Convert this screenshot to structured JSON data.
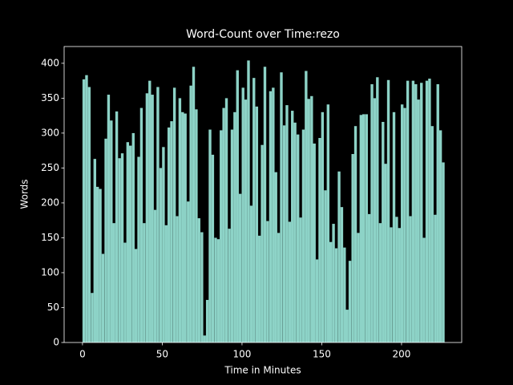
{
  "chart_data": {
    "type": "bar",
    "title": "Word-Count over Time:rezo",
    "xlabel": "Time in Minutes",
    "ylabel": "Words",
    "color": "#8dd3c7",
    "x": [
      0,
      1.7,
      3.4,
      5.2,
      6.9,
      8.6,
      10.3,
      12.0,
      13.8,
      15.5,
      17.2,
      18.9,
      20.6,
      22.4,
      24.1,
      25.8,
      27.5,
      29.2,
      31.0,
      32.7,
      34.4,
      36.1,
      37.8,
      39.6,
      41.3,
      43.0,
      44.7,
      46.4,
      48.2,
      49.9,
      51.6,
      53.3,
      55.0,
      56.8,
      58.5,
      60.2,
      61.9,
      63.6,
      65.4,
      67.1,
      68.8,
      70.5,
      72.2,
      74.0,
      75.7,
      77.4,
      79.1,
      80.8,
      82.6,
      84.3,
      86.0,
      87.7,
      89.4,
      91.2,
      92.9,
      94.6,
      96.3,
      98.0,
      99.8,
      101.5,
      103.2,
      104.9,
      106.6,
      108.4,
      110.1,
      111.8,
      113.5,
      115.2,
      117.0,
      118.7,
      120.4,
      122.1,
      123.8,
      125.6,
      127.3,
      129.0,
      130.7,
      132.4,
      134.2,
      135.9,
      137.6,
      139.3,
      141.0,
      142.8,
      144.5,
      146.2,
      147.9,
      149.6,
      151.4,
      153.1,
      154.8,
      156.5,
      158.2,
      160.0,
      161.7,
      163.4,
      165.1,
      166.8,
      168.6,
      170.3,
      172.0,
      173.7,
      175.4,
      177.2,
      178.9,
      180.6,
      182.3,
      184.0,
      185.8,
      187.5,
      189.2,
      190.9,
      192.6,
      194.4,
      196.1,
      197.8,
      199.5,
      201.2,
      203.0,
      204.7,
      206.4,
      208.1,
      209.8,
      211.6,
      213.3,
      215.0,
      216.7,
      218.4,
      220.2,
      221.9,
      223.6,
      225.3
    ],
    "values": [
      377,
      383,
      366,
      71,
      263,
      223,
      220,
      127,
      292,
      355,
      318,
      171,
      331,
      264,
      271,
      143,
      287,
      282,
      300,
      134,
      266,
      336,
      171,
      357,
      375,
      355,
      190,
      366,
      250,
      280,
      168,
      308,
      317,
      365,
      181,
      350,
      330,
      328,
      202,
      368,
      395,
      334,
      178,
      158,
      10,
      61,
      305,
      269,
      150,
      148,
      304,
      336,
      350,
      163,
      305,
      330,
      390,
      213,
      365,
      348,
      404,
      196,
      379,
      338,
      153,
      283,
      395,
      174,
      360,
      365,
      244,
      157,
      387,
      311,
      340,
      173,
      332,
      315,
      298,
      179,
      305,
      389,
      349,
      353,
      285,
      119,
      293,
      330,
      218,
      341,
      144,
      170,
      135,
      245,
      194,
      136,
      47,
      117,
      270,
      310,
      157,
      326,
      327,
      327,
      184,
      370,
      350,
      380,
      171,
      316,
      256,
      376,
      165,
      330,
      180,
      164,
      341,
      336,
      375,
      181,
      375,
      370,
      348,
      372,
      150,
      375,
      378,
      310,
      183,
      370,
      304,
      258
    ],
    "xlim": [
      -11.5,
      237.7
    ],
    "xticks": [
      0,
      50,
      100,
      150,
      200
    ],
    "ylim": [
      0,
      424
    ],
    "yticks": [
      0,
      50,
      100,
      150,
      200,
      250,
      300,
      350,
      400
    ]
  }
}
